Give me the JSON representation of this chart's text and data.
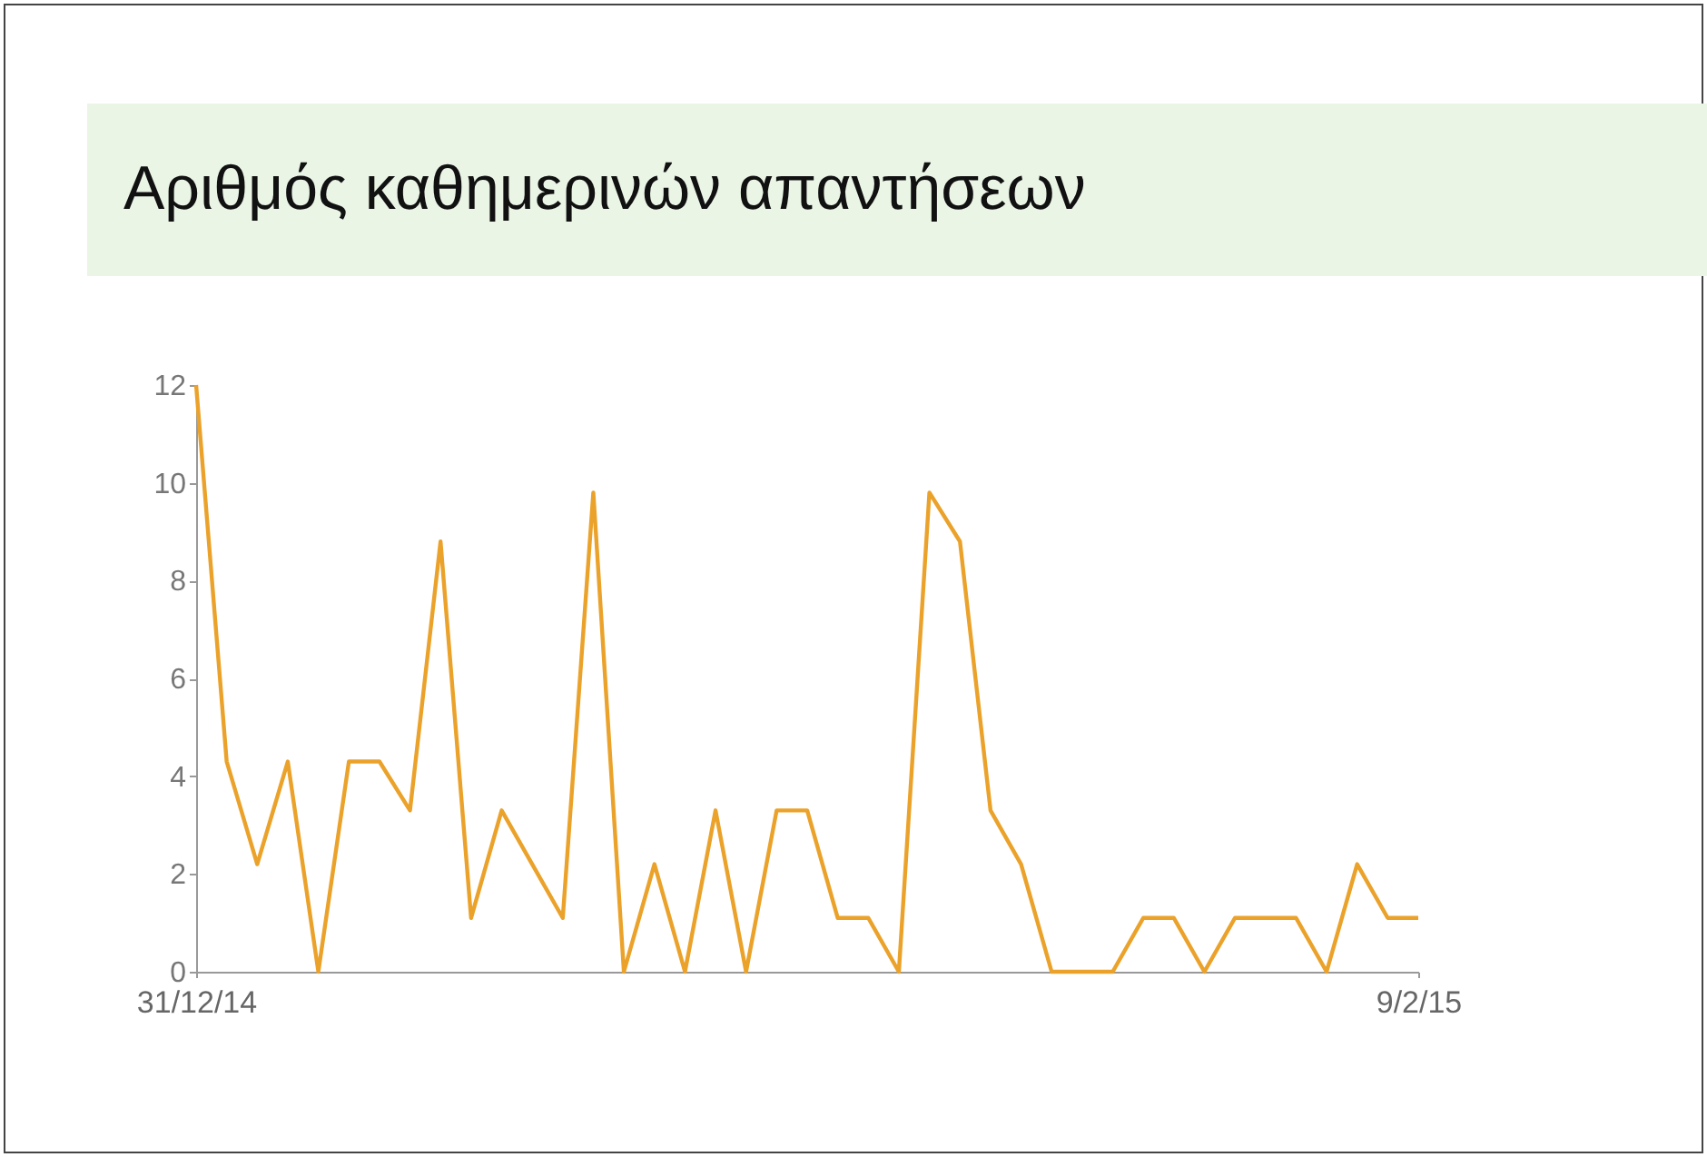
{
  "chart_data": {
    "type": "line",
    "title": "Αριθμός καθημερινών απαντήσεων",
    "x": [
      "2014-12-31",
      "2015-01-01",
      "2015-01-02",
      "2015-01-03",
      "2015-01-04",
      "2015-01-05",
      "2015-01-06",
      "2015-01-07",
      "2015-01-08",
      "2015-01-09",
      "2015-01-10",
      "2015-01-11",
      "2015-01-12",
      "2015-01-13",
      "2015-01-14",
      "2015-01-15",
      "2015-01-16",
      "2015-01-17",
      "2015-01-18",
      "2015-01-19",
      "2015-01-20",
      "2015-01-21",
      "2015-01-22",
      "2015-01-23",
      "2015-01-24",
      "2015-01-25",
      "2015-01-26",
      "2015-01-27",
      "2015-01-28",
      "2015-01-29",
      "2015-01-30",
      "2015-01-31",
      "2015-02-01",
      "2015-02-02",
      "2015-02-03",
      "2015-02-04",
      "2015-02-05",
      "2015-02-06",
      "2015-02-07",
      "2015-02-08",
      "2015-02-09"
    ],
    "series": [
      {
        "color": "#eba22a",
        "values": [
          12,
          4.3,
          2.2,
          4.3,
          0,
          4.3,
          4.3,
          3.3,
          8.8,
          1.1,
          3.3,
          2.2,
          1.1,
          9.8,
          0,
          2.2,
          0,
          3.3,
          0,
          3.3,
          3.3,
          1.1,
          1.1,
          0,
          9.8,
          8.8,
          3.3,
          2.2,
          0,
          0,
          0,
          1.1,
          1.1,
          0,
          1.1,
          1.1,
          1.1,
          0,
          2.2,
          1.1,
          1.1
        ]
      }
    ],
    "xlim": [
      "2014-12-31",
      "2015-02-09"
    ],
    "xticks": [
      {
        "value": "2014-12-31",
        "label": "31/12/14"
      },
      {
        "value": "2015-02-09",
        "label": "9/2/15"
      }
    ],
    "ylim": [
      0,
      12
    ],
    "yticks": [
      0,
      2,
      4,
      6,
      8,
      10,
      12
    ],
    "grid": false,
    "marker": "none",
    "line_style": "solid"
  }
}
